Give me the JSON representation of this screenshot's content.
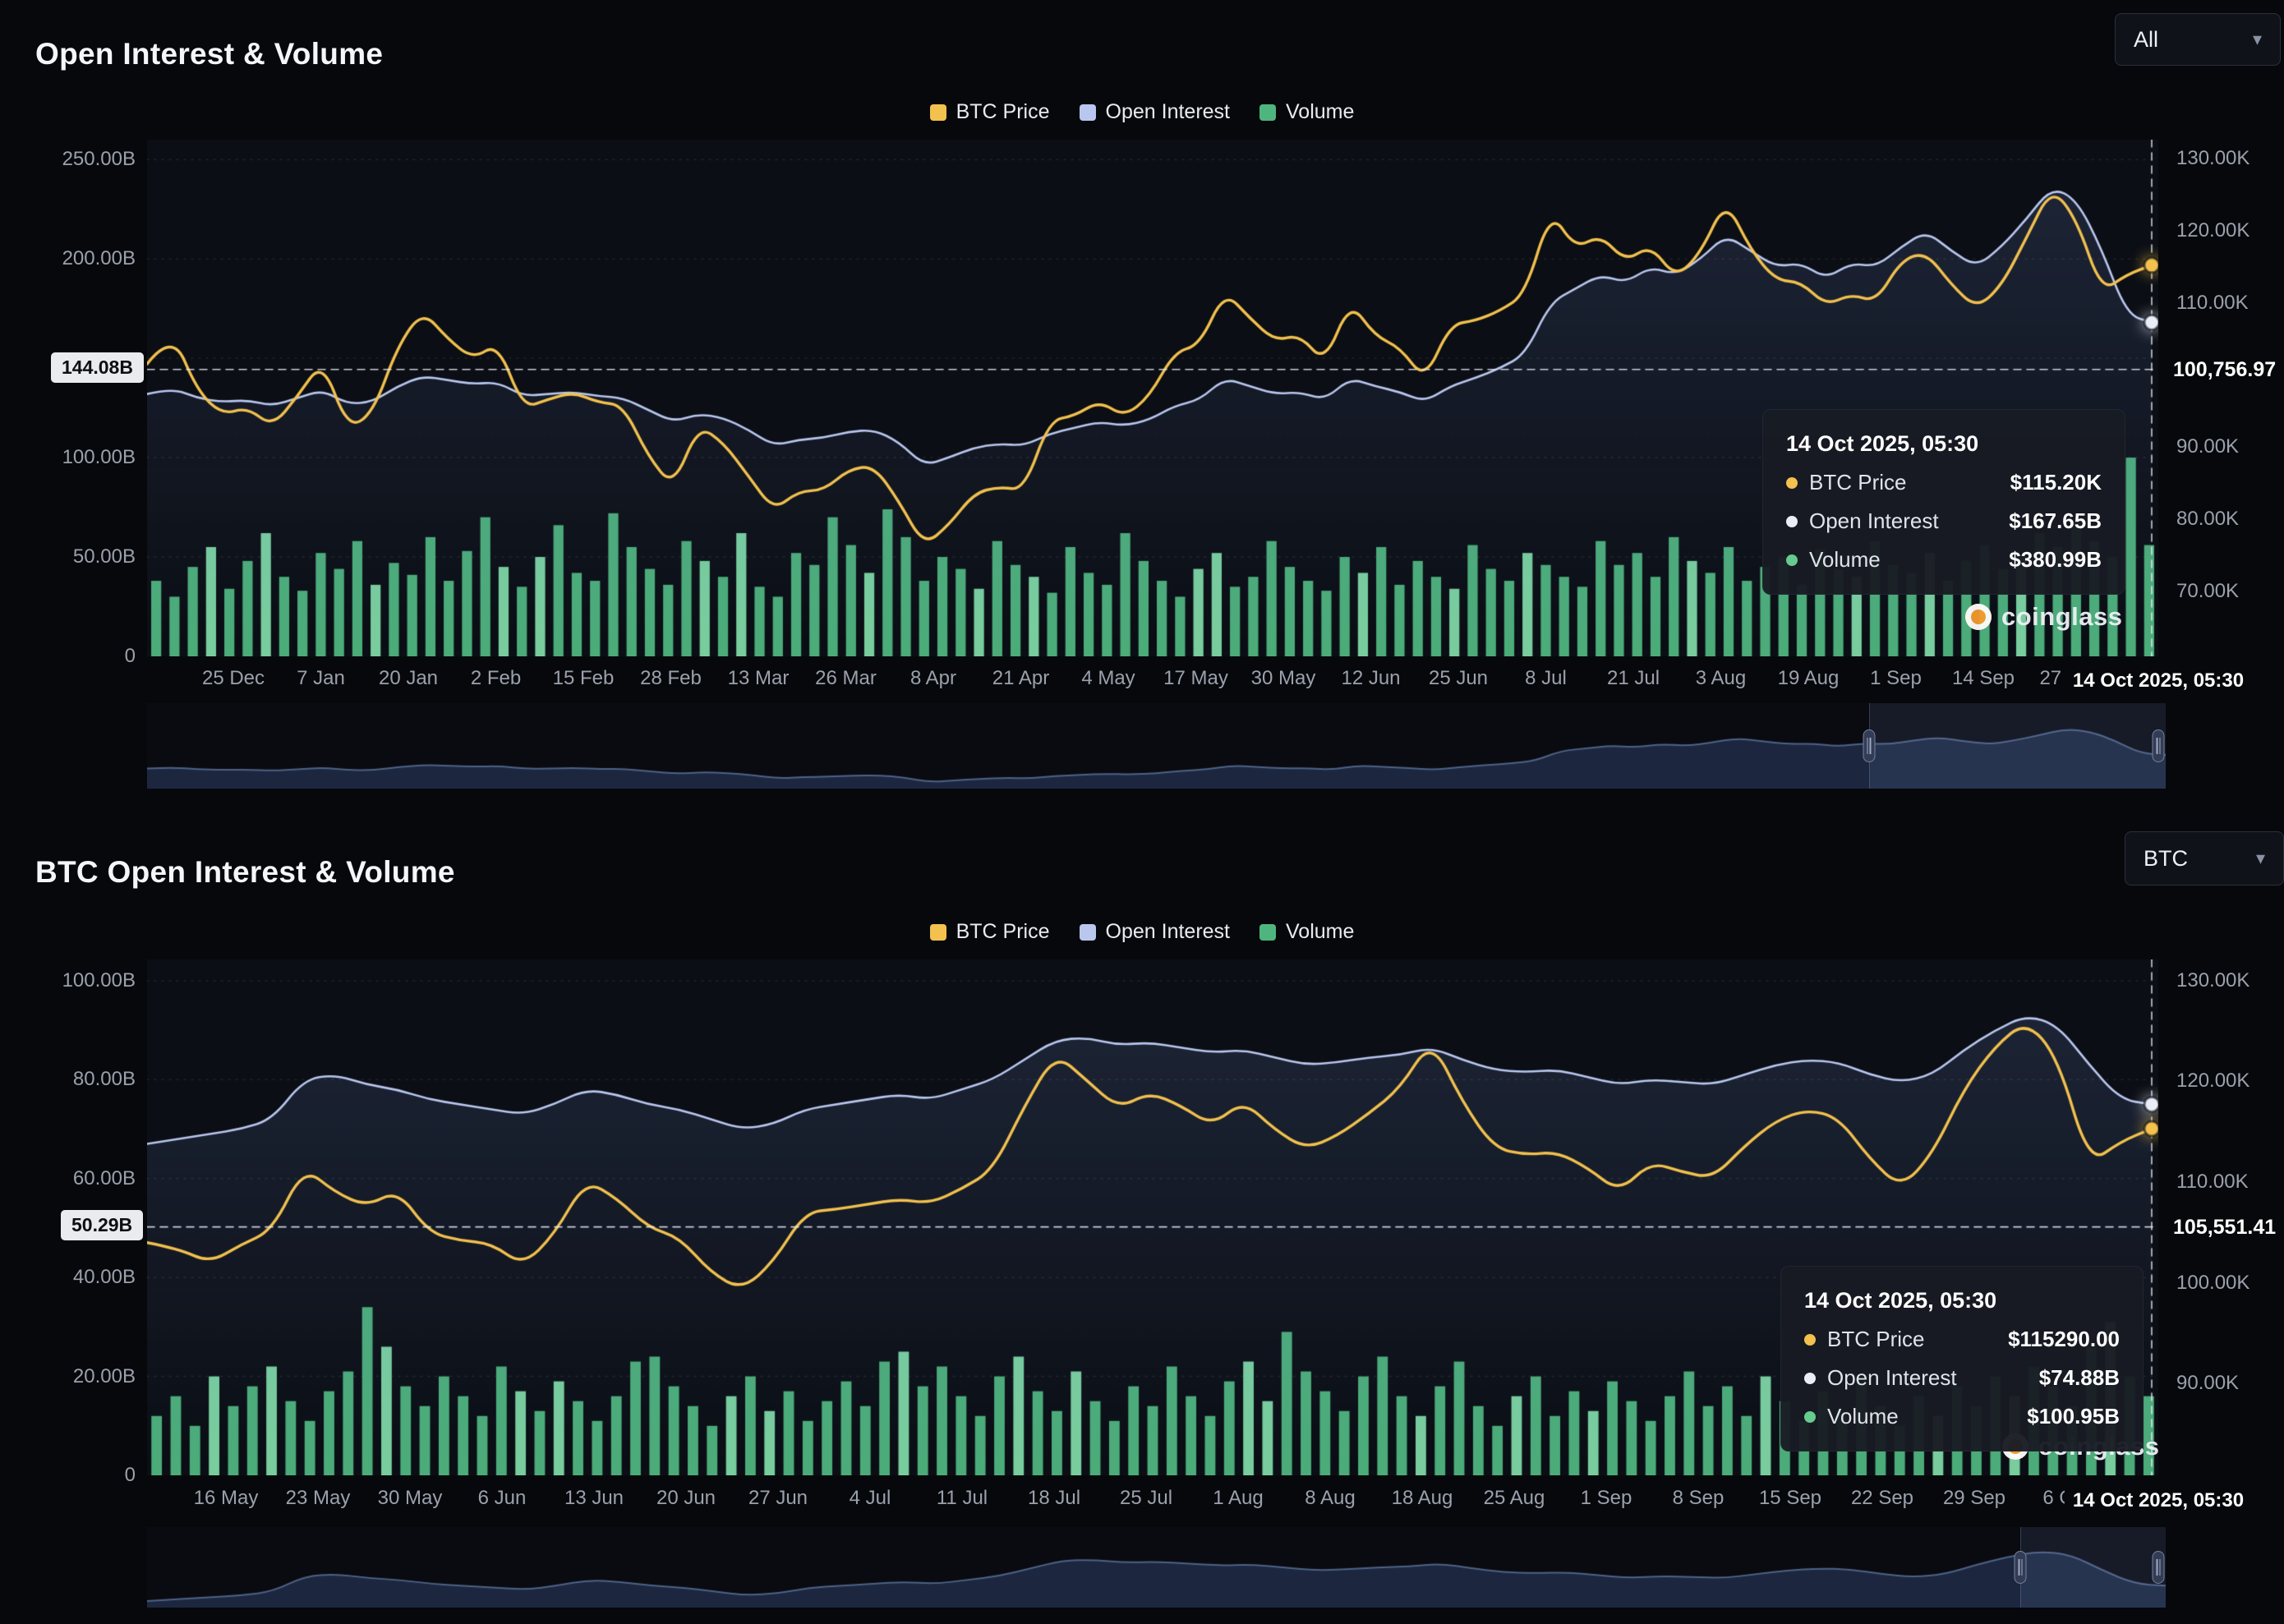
{
  "watermark": {
    "text": "coinglass"
  },
  "colors": {
    "price": "#f2c14e",
    "open_interest": "#b9c7ef",
    "volume": "#4fb57e",
    "volume_light": "#7ed8a4",
    "crosshair": "#e8ebf0",
    "badge_bg": "#e9ebee",
    "badge_text": "#0d0f13"
  },
  "chart_data": [
    {
      "type": "line+bar",
      "title": "Open Interest & Volume",
      "range_label": "All",
      "legend": [
        "BTC Price",
        "Open Interest",
        "Volume"
      ],
      "x_ticks": [
        "25 Dec",
        "7 Jan",
        "20 Jan",
        "2 Feb",
        "15 Feb",
        "28 Feb",
        "13 Mar",
        "26 Mar",
        "8 Apr",
        "21 Apr",
        "4 May",
        "17 May",
        "30 May",
        "12 Jun",
        "25 Jun",
        "8 Jul",
        "21 Jul",
        "3 Aug",
        "19 Aug",
        "1 Sep",
        "14 Sep",
        "27 Sep",
        "14 Oct 2025, 05:30"
      ],
      "grid_values": [
        250,
        200,
        150,
        100,
        50
      ],
      "left_axis": {
        "unit": "B",
        "scale_max": 260,
        "ticks": [
          {
            "value": 250,
            "label": "250.00B"
          },
          {
            "value": 200,
            "label": "200.00B"
          },
          {
            "value": 100,
            "label": "100.00B"
          },
          {
            "value": 50,
            "label": "50.00B"
          },
          {
            "value": 0,
            "label": "0"
          }
        ],
        "crosshair": {
          "value": 144.08,
          "label": "144.08B"
        }
      },
      "right_axis": {
        "unit": "K",
        "scale_min": 61,
        "scale_max": 132.6,
        "ticks": [
          {
            "value": 130,
            "label": "130.00K"
          },
          {
            "value": 120,
            "label": "120.00K"
          },
          {
            "value": 110,
            "label": "110.00K"
          },
          {
            "value": 90,
            "label": "90.00K"
          },
          {
            "value": 80,
            "label": "80.00K"
          },
          {
            "value": 70,
            "label": "70.00K"
          }
        ],
        "crosshair": {
          "value": 100.75697,
          "label": "100,756.97"
        }
      },
      "series": [
        {
          "name": "BTC Price",
          "axis": "right",
          "kind": "line",
          "color": "#f2c14e",
          "values": [
            101.5,
            106.0,
            97.8,
            94.5,
            95.5,
            92.8,
            97.0,
            102.0,
            92.6,
            94.6,
            104.0,
            108.9,
            105.0,
            102.2,
            104.4,
            95.4,
            96.6,
            97.6,
            96.2,
            95.8,
            88.7,
            84.4,
            93.0,
            90.6,
            86.0,
            81.2,
            83.9,
            84.0,
            86.9,
            87.4,
            82.5,
            76.3,
            79.2,
            83.6,
            84.5,
            84.0,
            93.7,
            94.3,
            96.4,
            94.2,
            97.0,
            103.2,
            104.1,
            111.6,
            107.9,
            104.7,
            105.6,
            101.6,
            110.2,
            105.4,
            103.8,
            99.2,
            107.0,
            107.5,
            108.9,
            111.2,
            122.8,
            117.5,
            119.4,
            115.7,
            118.0,
            113.4,
            116.9,
            124.3,
            117.3,
            113.1,
            112.9,
            109.6,
            111.2,
            110.1,
            115.9,
            117.0,
            112.5,
            109.2,
            112.3,
            119.0,
            126.0,
            121.6,
            111.5,
            113.9,
            115.2
          ]
        },
        {
          "name": "Open Interest",
          "axis": "left",
          "kind": "line",
          "color": "#b9c7ef",
          "values": [
            132,
            135,
            130,
            128,
            129,
            126,
            130,
            134,
            127,
            128,
            136,
            141,
            139,
            137,
            138,
            131,
            132,
            133,
            131,
            130,
            124,
            118,
            122,
            120,
            114,
            106,
            109,
            110,
            113,
            114,
            108,
            96,
            100,
            105,
            107,
            106,
            112,
            115,
            118,
            116,
            119,
            126,
            129,
            140,
            136,
            132,
            133,
            129,
            140,
            136,
            133,
            128,
            136,
            140,
            145,
            152,
            178,
            185,
            192,
            188,
            196,
            192,
            200,
            212,
            204,
            196,
            198,
            190,
            198,
            196,
            206,
            214,
            204,
            196,
            206,
            220,
            236,
            230,
            205,
            172,
            168
          ]
        },
        {
          "name": "Volume",
          "axis": "left",
          "kind": "bar",
          "color": "#4fb57e",
          "values": [
            38,
            30,
            45,
            55,
            34,
            48,
            62,
            40,
            33,
            52,
            44,
            58,
            36,
            47,
            41,
            60,
            38,
            53,
            70,
            45,
            35,
            50,
            66,
            42,
            38,
            72,
            55,
            44,
            36,
            58,
            48,
            40,
            62,
            35,
            30,
            52,
            46,
            70,
            56,
            42,
            74,
            60,
            38,
            50,
            44,
            34,
            58,
            46,
            40,
            32,
            55,
            42,
            36,
            62,
            48,
            38,
            30,
            44,
            52,
            35,
            40,
            58,
            45,
            38,
            33,
            50,
            42,
            55,
            36,
            48,
            40,
            34,
            56,
            44,
            38,
            52,
            46,
            40,
            35,
            58,
            46,
            52,
            40,
            60,
            48,
            42,
            55,
            38,
            45,
            50,
            36,
            54,
            44,
            40,
            58,
            46,
            42,
            52,
            38,
            48,
            56,
            44,
            50,
            62,
            55,
            68,
            58,
            50,
            100,
            56
          ]
        }
      ],
      "tooltip": {
        "title": "14 Oct 2025, 05:30",
        "rows": [
          {
            "label": "BTC Price",
            "value": "$115.20K"
          },
          {
            "label": "Open Interest",
            "value": "$167.65B"
          },
          {
            "label": "Volume",
            "value": "$380.99B"
          }
        ]
      }
    },
    {
      "type": "line+bar",
      "title": "BTC Open Interest & Volume",
      "range_label": "BTC",
      "legend": [
        "BTC Price",
        "Open Interest",
        "Volume"
      ],
      "x_ticks": [
        "16 May",
        "23 May",
        "30 May",
        "6 Jun",
        "13 Jun",
        "20 Jun",
        "27 Jun",
        "4 Jul",
        "11 Jul",
        "18 Jul",
        "25 Jul",
        "1 Aug",
        "8 Aug",
        "18 Aug",
        "25 Aug",
        "1 Sep",
        "8 Sep",
        "15 Sep",
        "22 Sep",
        "29 Sep",
        "6 Oct",
        "14 Oct 2025, 05:30"
      ],
      "grid_values": [
        100,
        80,
        60,
        40,
        20
      ],
      "left_axis": {
        "unit": "B",
        "scale_max": 104.3,
        "ticks": [
          {
            "value": 100,
            "label": "100.00B"
          },
          {
            "value": 80,
            "label": "80.00B"
          },
          {
            "value": 60,
            "label": "60.00B"
          },
          {
            "value": 40,
            "label": "40.00B"
          },
          {
            "value": 20,
            "label": "20.00B"
          },
          {
            "value": 0,
            "label": "0"
          }
        ],
        "crosshair": {
          "value": 50.29,
          "label": "50.29B"
        }
      },
      "right_axis": {
        "unit": "K",
        "scale_min": 80.9,
        "scale_max": 132.1,
        "ticks": [
          {
            "value": 130,
            "label": "130.00K"
          },
          {
            "value": 120,
            "label": "120.00K"
          },
          {
            "value": 110,
            "label": "110.00K"
          },
          {
            "value": 100,
            "label": "100.00K"
          },
          {
            "value": 90,
            "label": "90.00K"
          }
        ],
        "crosshair": {
          "value": 105.55141,
          "label": "105,551.41"
        }
      },
      "series": [
        {
          "name": "BTC Price",
          "axis": "right",
          "kind": "line",
          "color": "#f2c14e",
          "values": [
            104.0,
            103.4,
            102.0,
            103.8,
            105.2,
            111.5,
            109.0,
            107.6,
            109.2,
            105.0,
            104.2,
            103.9,
            101.7,
            104.8,
            110.2,
            108.4,
            105.5,
            104.5,
            101.0,
            99.3,
            102.1,
            107.0,
            107.3,
            107.8,
            108.3,
            107.9,
            109.3,
            111.2,
            117.5,
            122.8,
            120.1,
            117.3,
            118.9,
            117.6,
            115.6,
            118.1,
            115.2,
            113.3,
            114.6,
            116.8,
            119.3,
            124.2,
            117.9,
            113.4,
            112.7,
            113.0,
            111.4,
            109.0,
            112.0,
            111.0,
            110.4,
            113.6,
            116.1,
            117.2,
            116.4,
            112.3,
            109.4,
            112.8,
            119.2,
            123.5,
            126.0,
            122.4,
            111.8,
            114.0,
            115.3
          ]
        },
        {
          "name": "Open Interest",
          "axis": "left",
          "kind": "line",
          "color": "#b9c7ef",
          "values": [
            67,
            68,
            69,
            70,
            72,
            80,
            81,
            79,
            78,
            76,
            75,
            74,
            73,
            75,
            78,
            77,
            75,
            74,
            72,
            70,
            71,
            74,
            75,
            76,
            77,
            76,
            78,
            80,
            84,
            88,
            88.5,
            87,
            87.5,
            86.5,
            85.5,
            86,
            84.5,
            83,
            83.5,
            84.5,
            85,
            86.5,
            84,
            82,
            81.5,
            82,
            80.5,
            79,
            80,
            79.5,
            79,
            81,
            83,
            84,
            83.5,
            81,
            79.5,
            81,
            86,
            90,
            93,
            91,
            83,
            76,
            75
          ]
        },
        {
          "name": "Volume",
          "axis": "left",
          "kind": "bar",
          "color": "#4fb57e",
          "values": [
            12,
            16,
            10,
            20,
            14,
            18,
            22,
            15,
            11,
            17,
            21,
            34,
            26,
            18,
            14,
            20,
            16,
            12,
            22,
            17,
            13,
            19,
            15,
            11,
            16,
            23,
            24,
            18,
            14,
            10,
            16,
            20,
            13,
            17,
            11,
            15,
            19,
            14,
            23,
            25,
            18,
            22,
            16,
            12,
            20,
            24,
            17,
            13,
            21,
            15,
            11,
            18,
            14,
            22,
            16,
            12,
            19,
            23,
            15,
            29,
            21,
            17,
            13,
            20,
            24,
            16,
            12,
            18,
            23,
            14,
            10,
            16,
            20,
            12,
            17,
            13,
            19,
            15,
            11,
            16,
            21,
            14,
            18,
            12,
            20,
            15,
            11,
            17,
            13,
            19,
            14,
            10,
            16,
            12,
            18,
            14,
            20,
            16,
            22,
            18,
            14,
            26,
            31,
            20,
            16
          ]
        }
      ],
      "tooltip": {
        "title": "14 Oct 2025, 05:30",
        "rows": [
          {
            "label": "BTC Price",
            "value": "$115290.00"
          },
          {
            "label": "Open Interest",
            "value": "$74.88B"
          },
          {
            "label": "Volume",
            "value": "$100.95B"
          }
        ]
      }
    }
  ]
}
